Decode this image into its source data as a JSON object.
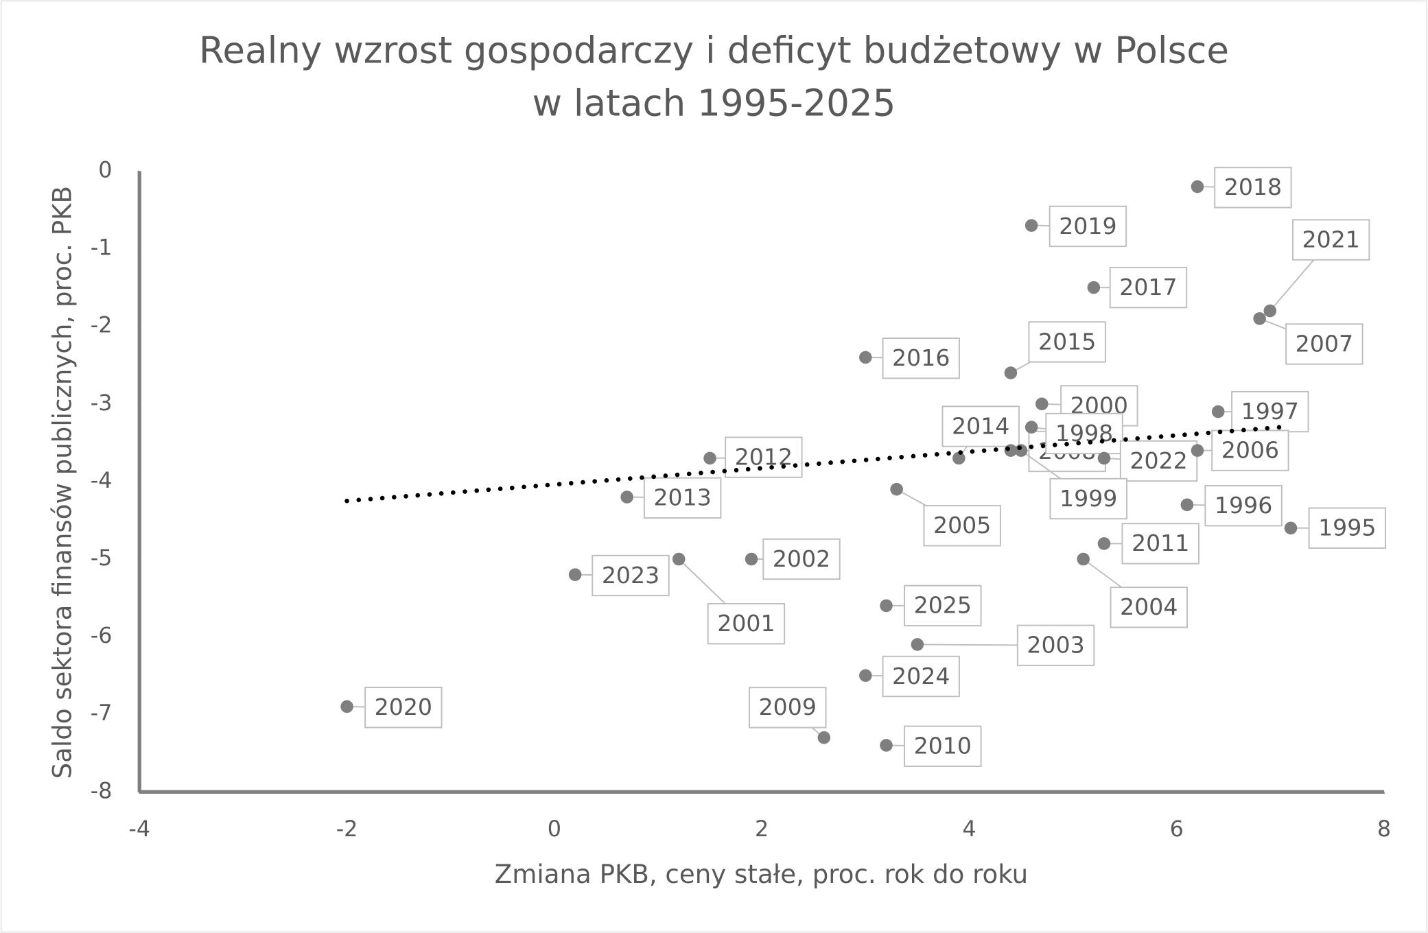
{
  "chart_data": {
    "type": "scatter",
    "title": "Realny wzrost gospodarczy i deficyt budżetowy w Polsce",
    "subtitle": "w latach 1995-2025",
    "x_label": "Zmiana PKB, ceny stałe, proc. rok do roku",
    "y_label": "Saldo sektora finansów publicznych, proc. PKB",
    "labels": [
      "2018",
      "2019",
      "2017",
      "2021",
      "2007",
      "2016",
      "2015",
      "2000",
      "1997",
      "2014",
      "2008",
      "1998",
      "2022",
      "2006",
      "1999",
      "2012",
      "2013",
      "2005",
      "1996",
      "1995",
      "2011",
      "2023",
      "2001",
      "2002",
      "2004",
      "2025",
      "2003",
      "2024",
      "2020",
      "2009",
      "2010"
    ],
    "x": [
      6.2,
      4.6,
      5.2,
      6.9,
      6.8,
      3.0,
      4.4,
      4.7,
      6.4,
      3.9,
      4.4,
      4.6,
      5.3,
      6.2,
      4.5,
      1.5,
      0.7,
      3.3,
      6.1,
      7.1,
      5.3,
      0.2,
      1.2,
      1.9,
      5.1,
      3.2,
      3.5,
      3.0,
      -2.0,
      2.6,
      3.2
    ],
    "y": [
      -0.2,
      -0.7,
      -1.5,
      -1.8,
      -1.9,
      -2.4,
      -2.6,
      -3.0,
      -3.1,
      -3.7,
      -3.6,
      -3.3,
      -3.7,
      -3.6,
      -3.6,
      -3.7,
      -4.2,
      -4.1,
      -4.3,
      -4.6,
      -4.8,
      -5.2,
      -5.0,
      -5.0,
      -5.0,
      -5.6,
      -6.1,
      -6.5,
      -6.9,
      -7.3,
      -7.4
    ],
    "color": "#7f7f7f",
    "trendline": {
      "x": [
        -2,
        7
      ],
      "y": [
        -4.25,
        -3.3
      ],
      "color": "#000000"
    },
    "xlim": [
      -4,
      8
    ],
    "xticks": [
      -4,
      -2,
      0,
      2,
      4,
      6,
      8
    ],
    "ylim": [
      -8,
      0
    ],
    "yticks": [
      0,
      -1,
      -2,
      -3,
      -4,
      -5,
      -6,
      -7,
      -8
    ],
    "grid": false
  }
}
